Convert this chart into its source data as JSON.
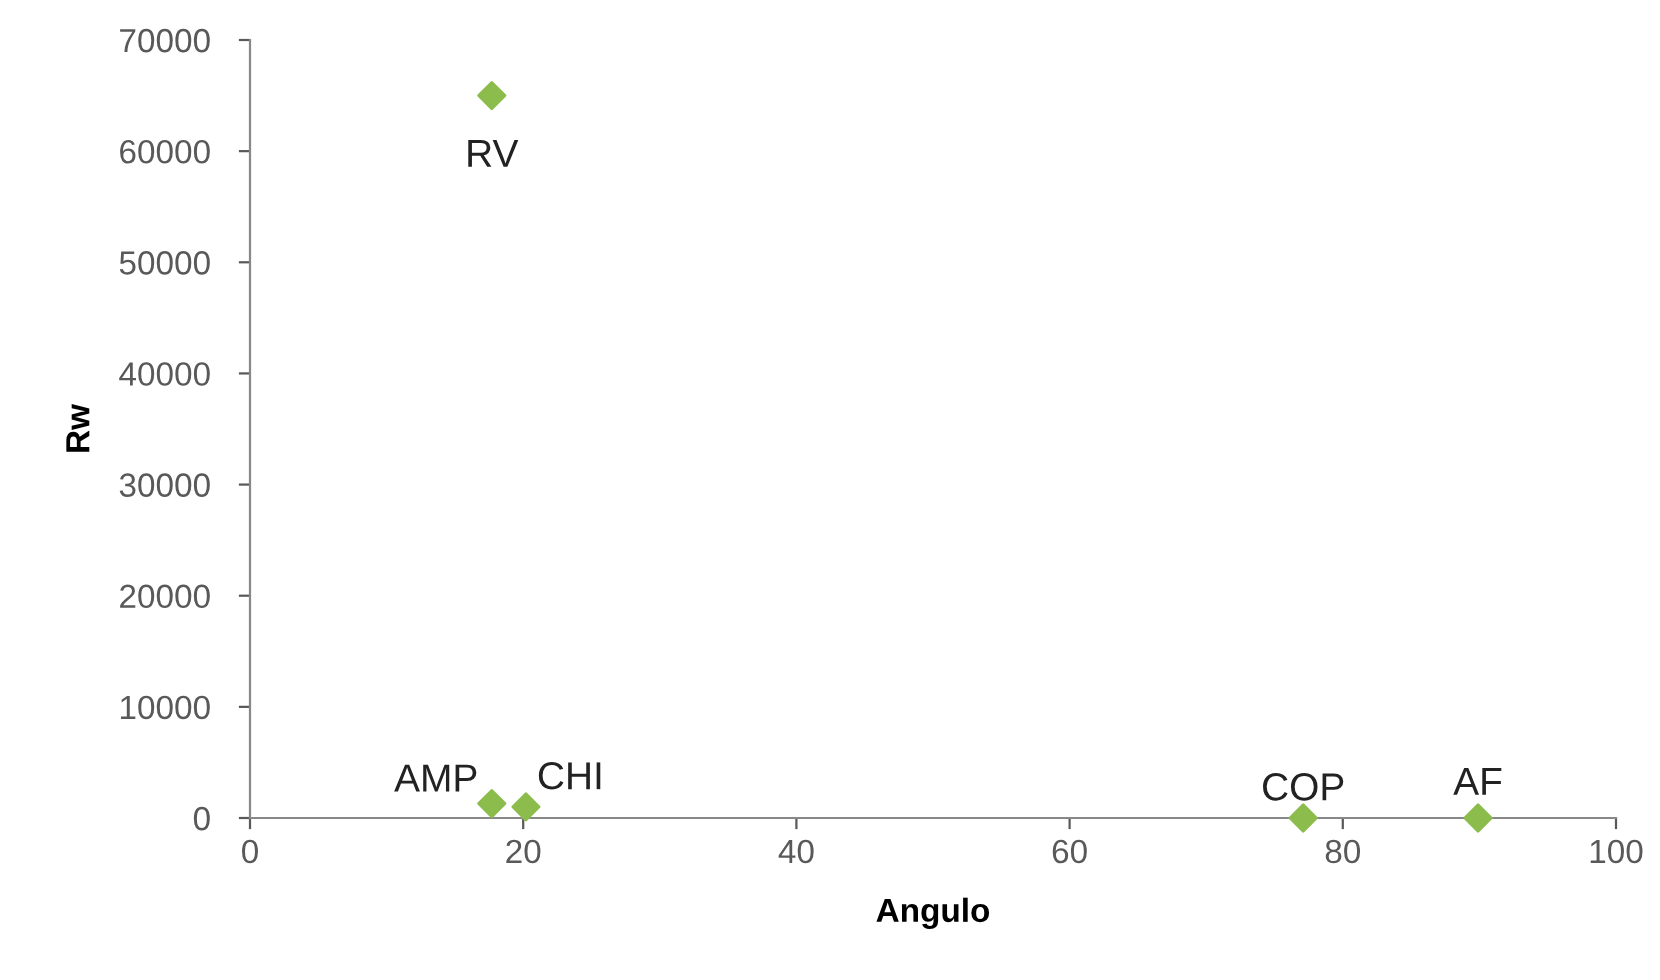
{
  "chart_data": {
    "type": "scatter",
    "xlabel": "Angulo",
    "ylabel": "Rw",
    "x": [
      17.7,
      17.7,
      20.2,
      77.1,
      89.9
    ],
    "series": [
      {
        "color": "#8cbc4c",
        "values": [
          65000,
          1300,
          1000,
          0,
          0
        ]
      }
    ],
    "marker": "diamond",
    "grid": false,
    "legend": false,
    "xlim": [
      0,
      100
    ],
    "xticks": [
      0,
      20,
      40,
      60,
      80,
      100
    ],
    "ylim": [
      0,
      70000
    ],
    "yticks": [
      0,
      10000,
      20000,
      30000,
      40000,
      50000,
      60000,
      70000
    ],
    "annotations": [
      {
        "text": "RV",
        "x": 17.7,
        "y": 65000
      },
      {
        "text": "AMP",
        "x": 17.7,
        "y": 1300
      },
      {
        "text": "CHI",
        "x": 20.2,
        "y": 1000
      },
      {
        "text": "COP",
        "x": 77.1,
        "y": 0
      },
      {
        "text": "AF",
        "x": 89.9,
        "y": 0
      }
    ]
  }
}
